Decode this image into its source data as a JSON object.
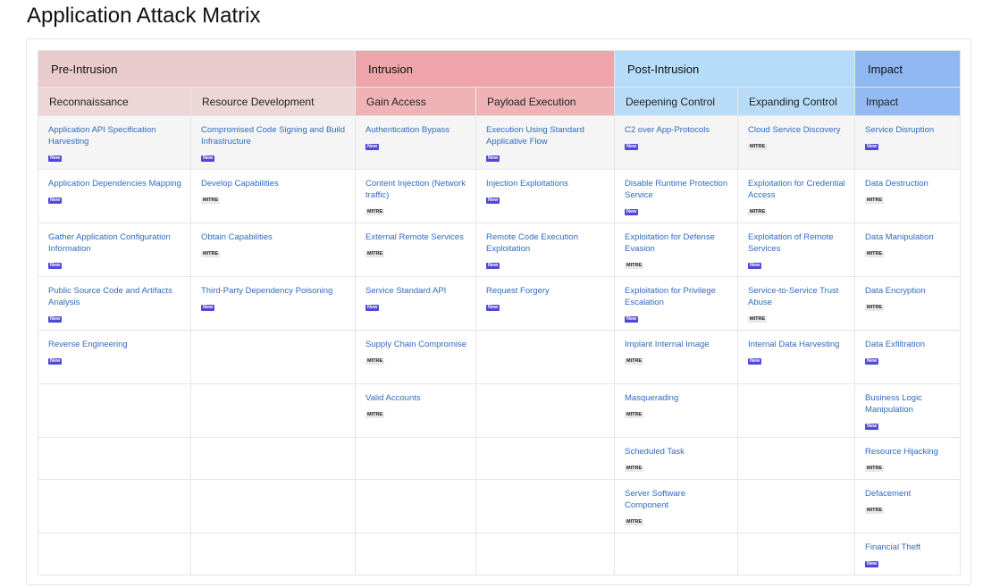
{
  "title": "Application Attack Matrix",
  "phases": [
    {
      "label": "Pre-Intrusion"
    },
    {
      "label": "Intrusion"
    },
    {
      "label": "Post-Intrusion"
    },
    {
      "label": "Impact"
    }
  ],
  "tactics": [
    {
      "label": "Reconnaissance"
    },
    {
      "label": "Resource Development"
    },
    {
      "label": "Gain Access"
    },
    {
      "label": "Payload Execution"
    },
    {
      "label": "Deepening Control"
    },
    {
      "label": "Expanding Control"
    },
    {
      "label": "Impact"
    }
  ],
  "badges": {
    "new": "New",
    "mitre": "MITRE"
  },
  "colors": {
    "pre_intrusion": "#e9cbcd",
    "intrusion": "#eea4a8",
    "post_intrusion": "#b5dcf8",
    "impact": "#8fb7f2",
    "link": "#2f6bc2",
    "new_badge": "#5147d8"
  },
  "columns": [
    [
      {
        "name": "Application API Specification Harvesting",
        "badge": "New"
      },
      {
        "name": "Application Dependencies Mapping",
        "badge": "New"
      },
      {
        "name": "Gather Application Configuration Information",
        "badge": "New"
      },
      {
        "name": "Public Source Code and Artifacts Analysis",
        "badge": "New"
      },
      {
        "name": "Reverse Engineering",
        "badge": "New"
      }
    ],
    [
      {
        "name": "Compromised Code Signing and Build Infrastructure",
        "badge": "New"
      },
      {
        "name": "Develop Capabilities",
        "badge": "MITRE"
      },
      {
        "name": "Obtain Capabilities",
        "badge": "MITRE"
      },
      {
        "name": "Third-Party Dependency Poisoning",
        "badge": "New"
      }
    ],
    [
      {
        "name": "Authentication Bypass",
        "badge": "New"
      },
      {
        "name": "Content Injection (Network traffic)",
        "badge": "MITRE"
      },
      {
        "name": "External Remote Services",
        "badge": "MITRE"
      },
      {
        "name": "Service Standard API",
        "badge": "New"
      },
      {
        "name": "Supply Chain Compromise",
        "badge": "MITRE"
      },
      {
        "name": "Valid Accounts",
        "badge": "MITRE"
      }
    ],
    [
      {
        "name": "Execution Using Standard Applicative Flow",
        "badge": "New"
      },
      {
        "name": "Injection Exploitations",
        "badge": "New"
      },
      {
        "name": "Remote Code Execution Exploitation",
        "badge": "New"
      },
      {
        "name": "Request Forgery",
        "badge": "New"
      }
    ],
    [
      {
        "name": "C2 over App-Protocols",
        "badge": "New"
      },
      {
        "name": "Disable Runtime Protection Service",
        "badge": "New"
      },
      {
        "name": "Exploitation for Defense Evasion",
        "badge": "MITRE"
      },
      {
        "name": "Exploitation for Privilege Escalation",
        "badge": "New"
      },
      {
        "name": "Implant Internal Image",
        "badge": "MITRE"
      },
      {
        "name": "Masquerading",
        "badge": "MITRE"
      },
      {
        "name": "Scheduled Task",
        "badge": "MITRE"
      },
      {
        "name": "Server Software Component",
        "badge": "MITRE"
      }
    ],
    [
      {
        "name": "Cloud Service Discovery",
        "badge": "MITRE"
      },
      {
        "name": "Exploitation for Credential Access",
        "badge": "MITRE"
      },
      {
        "name": "Exploitation of Remote Services",
        "badge": "New"
      },
      {
        "name": "Service-to-Service Trust Abuse",
        "badge": "MITRE"
      },
      {
        "name": "Internal Data Harvesting",
        "badge": "New"
      }
    ],
    [
      {
        "name": "Service Disruption",
        "badge": "New"
      },
      {
        "name": "Data Destruction",
        "badge": "MITRE"
      },
      {
        "name": "Data Manipulation",
        "badge": "MITRE"
      },
      {
        "name": "Data Encryption",
        "badge": "MITRE"
      },
      {
        "name": "Data Exfiltration",
        "badge": "New"
      },
      {
        "name": "Business Logic Manipulation",
        "badge": "New"
      },
      {
        "name": "Resource Hijacking",
        "badge": "MITRE"
      },
      {
        "name": "Defacement",
        "badge": "MITRE"
      },
      {
        "name": "Financial Theft",
        "badge": "New"
      }
    ]
  ]
}
